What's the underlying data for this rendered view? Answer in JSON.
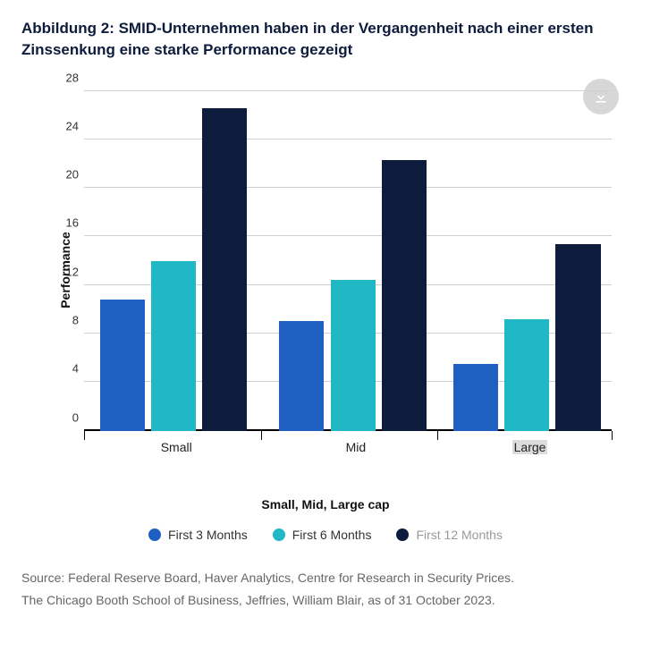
{
  "title": "Abbildung 2: SMID-Unternehmen haben in der Vergangenheit nach einer ersten Zinssenkung eine starke Performance gezeigt",
  "chart": {
    "type": "bar",
    "y_label": "Performance",
    "x_label": "Small, Mid, Large cap",
    "ylim": [
      0,
      28
    ],
    "ytick_step": 4,
    "yticks": [
      0,
      4,
      8,
      12,
      16,
      20,
      24,
      28
    ],
    "grid_color": "#cfcfcf",
    "background_color": "#ffffff",
    "categories": [
      "Small",
      "Mid",
      "Large"
    ],
    "series": [
      {
        "name": "First 3 Months",
        "color": "#1e5fc1",
        "values": [
          10.8,
          9.0,
          5.5
        ]
      },
      {
        "name": "First 6 Months",
        "color": "#20b8c5",
        "values": [
          14.0,
          12.4,
          9.2
        ]
      },
      {
        "name": "First 12 Months",
        "color": "#0d1b3d",
        "values": [
          26.6,
          22.3,
          15.4
        ],
        "muted": true
      }
    ],
    "bar_width_pct": 8.5,
    "bar_gap_pct": 1.2,
    "group_positions_pct": [
      3,
      37,
      70
    ],
    "group_width_pct": 29,
    "label_fontsize": 14,
    "tick_fontsize": 13,
    "category_highlight": {
      "index": 2,
      "bg": "#dcdcdc"
    }
  },
  "source_lines": [
    "Source: Federal Reserve Board, Haver Analytics, Centre for Research in Security Prices.",
    "The Chicago Booth School of Business, Jeffries, William Blair, as of 31 October 2023."
  ],
  "download_icon": "download"
}
